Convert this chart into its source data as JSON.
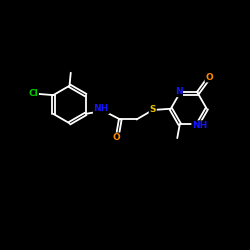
{
  "bg_color": "#000000",
  "bond_color": "#ffffff",
  "atom_colors": {
    "N": "#1414ff",
    "O": "#ff8c00",
    "S": "#e6c000",
    "Cl": "#00cc00",
    "C": "#ffffff",
    "H": "#ffffff"
  },
  "font_size": 6.5,
  "bond_width": 1.3,
  "figsize": [
    2.5,
    2.5
  ],
  "dpi": 100
}
